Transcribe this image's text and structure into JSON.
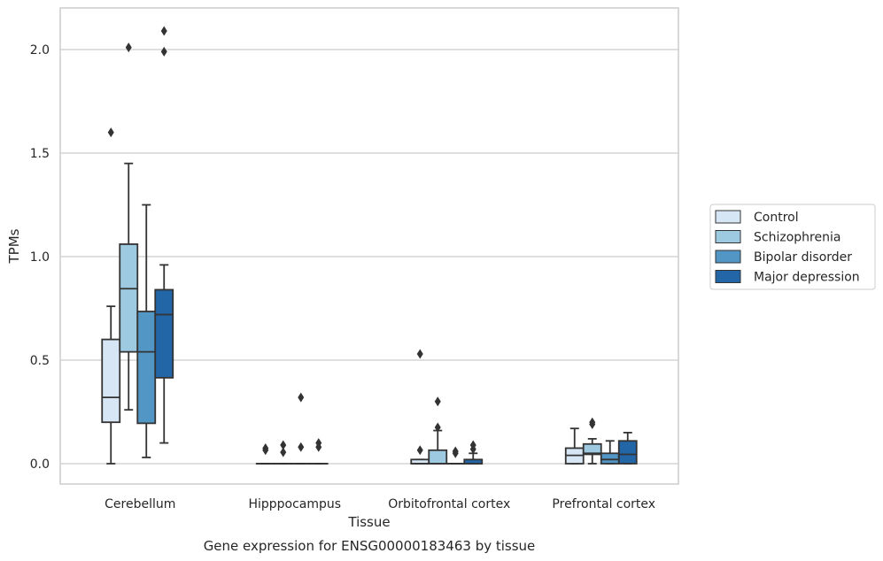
{
  "caption": "Gene expression for ENSG00000183463 by tissue",
  "colors": {
    "Control": "#d6e6f4",
    "Schizophrenia": "#9ecae1",
    "Bipolar disorder": "#5296c6",
    "Major depression": "#2266a8",
    "grid": "#cccccc",
    "frame": "#cccccc",
    "line": "#333333"
  },
  "chart_data": {
    "type": "box",
    "title": "",
    "xlabel": "Tissue",
    "ylabel": "TPMs",
    "ylim": [
      -0.1,
      2.2
    ],
    "yticks": [
      0.0,
      0.5,
      1.0,
      1.5,
      2.0
    ],
    "ytick_labels": [
      "0.0",
      "0.5",
      "1.0",
      "1.5",
      "2.0"
    ],
    "grid": "horizontal",
    "legend_position": "right",
    "categories": [
      "Cerebellum",
      "Hipppocampus",
      "Orbitofrontal cortex",
      "Prefrontal cortex"
    ],
    "series": [
      {
        "name": "Control",
        "boxes": [
          {
            "q1": 0.2,
            "median": 0.32,
            "q3": 0.6,
            "whisker_low": 0.0,
            "whisker_high": 0.76,
            "outliers": [
              1.6
            ]
          },
          {
            "q1": 0.0,
            "median": 0.0,
            "q3": 0.0,
            "whisker_low": 0.0,
            "whisker_high": 0.0,
            "outliers": [
              0.065,
              0.075
            ]
          },
          {
            "q1": 0.0,
            "median": 0.0,
            "q3": 0.02,
            "whisker_low": 0.0,
            "whisker_high": 0.02,
            "outliers": [
              0.065,
              0.53
            ]
          },
          {
            "q1": 0.0,
            "median": 0.04,
            "q3": 0.075,
            "whisker_low": 0.0,
            "whisker_high": 0.17,
            "outliers": []
          }
        ]
      },
      {
        "name": "Schizophrenia",
        "boxes": [
          {
            "q1": 0.54,
            "median": 0.845,
            "q3": 1.06,
            "whisker_low": 0.26,
            "whisker_high": 1.45,
            "outliers": [
              2.01
            ]
          },
          {
            "q1": 0.0,
            "median": 0.0,
            "q3": 0.0,
            "whisker_low": 0.0,
            "whisker_high": 0.0,
            "outliers": [
              0.055,
              0.09
            ]
          },
          {
            "q1": 0.0,
            "median": 0.0,
            "q3": 0.065,
            "whisker_low": 0.0,
            "whisker_high": 0.16,
            "outliers": [
              0.175,
              0.3
            ]
          },
          {
            "q1": 0.045,
            "median": 0.05,
            "q3": 0.095,
            "whisker_low": 0.0,
            "whisker_high": 0.12,
            "outliers": [
              0.19,
              0.2
            ]
          }
        ]
      },
      {
        "name": "Bipolar disorder",
        "boxes": [
          {
            "q1": 0.195,
            "median": 0.54,
            "q3": 0.735,
            "whisker_low": 0.03,
            "whisker_high": 1.25,
            "outliers": []
          },
          {
            "q1": 0.0,
            "median": 0.0,
            "q3": 0.0,
            "whisker_low": 0.0,
            "whisker_high": 0.0,
            "outliers": [
              0.08,
              0.32
            ]
          },
          {
            "q1": 0.0,
            "median": 0.0,
            "q3": 0.0,
            "whisker_low": 0.0,
            "whisker_high": 0.0,
            "outliers": [
              0.05,
              0.06
            ]
          },
          {
            "q1": 0.0,
            "median": 0.02,
            "q3": 0.05,
            "whisker_low": 0.0,
            "whisker_high": 0.11,
            "outliers": []
          }
        ]
      },
      {
        "name": "Major depression",
        "boxes": [
          {
            "q1": 0.415,
            "median": 0.72,
            "q3": 0.84,
            "whisker_low": 0.1,
            "whisker_high": 0.96,
            "outliers": [
              1.99,
              2.09
            ]
          },
          {
            "q1": 0.0,
            "median": 0.0,
            "q3": 0.0,
            "whisker_low": 0.0,
            "whisker_high": 0.0,
            "outliers": [
              0.08,
              0.1
            ]
          },
          {
            "q1": 0.0,
            "median": 0.0,
            "q3": 0.02,
            "whisker_low": 0.0,
            "whisker_high": 0.05,
            "outliers": [
              0.07,
              0.09
            ]
          },
          {
            "q1": 0.0,
            "median": 0.045,
            "q3": 0.11,
            "whisker_low": 0.0,
            "whisker_high": 0.15,
            "outliers": []
          }
        ]
      }
    ]
  }
}
